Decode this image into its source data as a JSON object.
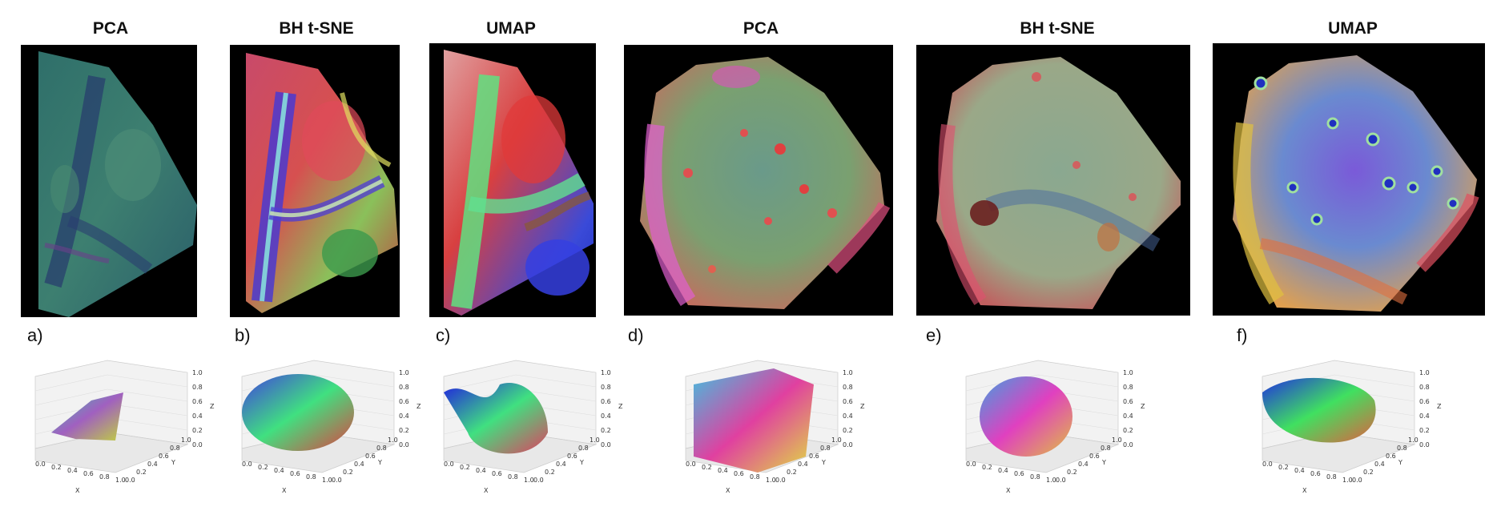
{
  "panels": [
    {
      "title": "PCA",
      "label": "a)"
    },
    {
      "title": "BH t-SNE",
      "label": "b)"
    },
    {
      "title": "UMAP",
      "label": "c)"
    },
    {
      "title": "PCA",
      "label": "d)"
    },
    {
      "title": "BH t-SNE",
      "label": "e)"
    },
    {
      "title": "UMAP",
      "label": "f)"
    }
  ],
  "axes3d": {
    "x_label": "X",
    "y_label": "Y",
    "z_label": "Z",
    "ticks": [
      "0.0",
      "0.2",
      "0.4",
      "0.6",
      "0.8",
      "1.0"
    ]
  }
}
